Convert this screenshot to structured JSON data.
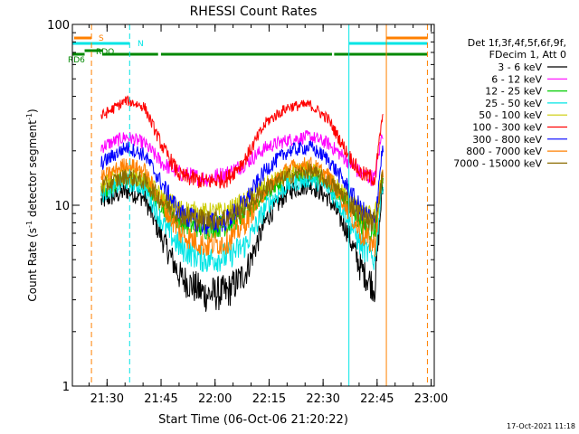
{
  "chart_data": {
    "type": "line",
    "title": "RHESSI Count Rates",
    "xlabel": "Start Time (06-Oct-06 21:20:22)",
    "ylabel_main": "Count Rate (s",
    "ylabel_sup1": "-1",
    "ylabel_mid": " detector segment",
    "ylabel_sup2": "-1",
    "ylabel_end": ")",
    "scale_y": "log",
    "x_unit": "minutes since 21:20:22",
    "xlim": [
      0,
      100.5
    ],
    "ylim": [
      1,
      100
    ],
    "x_ticks": [
      {
        "label": "21:30",
        "x": 9.63
      },
      {
        "label": "21:45",
        "x": 24.63
      },
      {
        "label": "22:00",
        "x": 39.63
      },
      {
        "label": "22:15",
        "x": 54.63
      },
      {
        "label": "22:30",
        "x": 69.63
      },
      {
        "label": "22:45",
        "x": 84.63
      },
      {
        "label": "23:00",
        "x": 99.63
      }
    ],
    "y_ticks": [
      {
        "label": "1",
        "y": 1
      },
      {
        "label": "10",
        "y": 10
      },
      {
        "label": "100",
        "y": 100
      }
    ],
    "legend_header": [
      "Det 1f,3f,4f,5f,6f,9f,",
      "FDecim 1, Att 0"
    ],
    "legend_position": "right",
    "data_start": 8,
    "data_end": 86.3,
    "series": [
      {
        "name": "3 - 6 keV",
        "color": "#000000",
        "x": [
          8,
          15,
          20,
          25,
          30,
          37,
          43,
          48,
          54,
          60,
          66,
          71,
          76,
          80,
          84,
          86
        ],
        "y": [
          10.5,
          12,
          11,
          6.5,
          4,
          3.2,
          3.3,
          4.2,
          8.5,
          12,
          13,
          11,
          7.5,
          4.5,
          3.5,
          12
        ]
      },
      {
        "name": "6 - 12 keV",
        "color": "#ff00ff",
        "x": [
          8,
          15,
          20,
          25,
          30,
          37,
          43,
          48,
          54,
          60,
          66,
          71,
          76,
          80,
          84,
          86
        ],
        "y": [
          21,
          24,
          22,
          17,
          15,
          14,
          15,
          17,
          21,
          23,
          24,
          22,
          18,
          15,
          14,
          25
        ]
      },
      {
        "name": "12 - 25 keV",
        "color": "#00cc00",
        "x": [
          8,
          15,
          20,
          25,
          30,
          37,
          43,
          48,
          54,
          60,
          66,
          71,
          76,
          80,
          84,
          86
        ],
        "y": [
          12,
          14,
          13,
          10,
          8,
          7.5,
          7.8,
          9,
          12,
          14,
          15,
          13,
          10.5,
          8,
          7,
          14
        ]
      },
      {
        "name": "25 - 50 keV",
        "color": "#00e5e5",
        "x": [
          8,
          15,
          20,
          25,
          30,
          37,
          43,
          48,
          54,
          60,
          66,
          71,
          76,
          80,
          84,
          86
        ],
        "y": [
          11.5,
          13.5,
          12.5,
          8,
          5.8,
          5,
          5.2,
          6,
          10,
          13,
          14,
          12.5,
          9,
          6,
          5,
          13
        ]
      },
      {
        "name": "50 - 100 keV",
        "color": "#cccc00",
        "x": [
          8,
          15,
          20,
          25,
          30,
          37,
          43,
          48,
          54,
          60,
          66,
          71,
          76,
          80,
          84,
          86
        ],
        "y": [
          13,
          15,
          14,
          11,
          9.5,
          9,
          9.2,
          10.5,
          13,
          15,
          16,
          14,
          11.5,
          9,
          8.5,
          15
        ]
      },
      {
        "name": "100 - 300 keV",
        "color": "#ff0000",
        "x": [
          8,
          15,
          20,
          25,
          30,
          37,
          43,
          48,
          54,
          60,
          66,
          71,
          76,
          80,
          84,
          86
        ],
        "y": [
          31,
          38,
          35,
          21,
          14.5,
          13.5,
          14,
          18,
          29,
          35,
          36,
          30,
          20,
          15,
          14,
          30
        ]
      },
      {
        "name": "300 - 800 keV",
        "color": "#0000ff",
        "x": [
          8,
          15,
          20,
          25,
          30,
          37,
          43,
          48,
          54,
          60,
          66,
          71,
          76,
          80,
          84,
          86
        ],
        "y": [
          17,
          21,
          19,
          13,
          9,
          7.8,
          8.3,
          10.5,
          16,
          20,
          21,
          18,
          13,
          9.5,
          8,
          20
        ]
      },
      {
        "name": "800 - 7000 keV",
        "color": "#ff8000",
        "x": [
          8,
          15,
          20,
          25,
          30,
          37,
          43,
          48,
          54,
          60,
          66,
          71,
          76,
          80,
          84,
          86
        ],
        "y": [
          14,
          17,
          15.5,
          10,
          7,
          6,
          6.3,
          8,
          12.5,
          16,
          17,
          14.5,
          10,
          7,
          6,
          15
        ]
      },
      {
        "name": "7000 - 15000 keV",
        "color": "#8b6b00",
        "x": [
          8,
          15,
          20,
          25,
          30,
          37,
          43,
          48,
          54,
          60,
          66,
          71,
          76,
          80,
          84,
          86
        ],
        "y": [
          12.5,
          14.5,
          13.5,
          10.5,
          8.8,
          8.3,
          8.5,
          9.8,
          12.5,
          14.5,
          15.5,
          13.5,
          11,
          8.8,
          8,
          14
        ]
      }
    ],
    "vertical_markers": [
      {
        "x": 5.3,
        "color": "#ff8000",
        "style": "dashed"
      },
      {
        "x": 15.9,
        "color": "#00e5e5",
        "style": "dashed"
      },
      {
        "x": 76.8,
        "color": "#00e5e5",
        "style": "solid"
      },
      {
        "x": 87.2,
        "color": "#ff8000",
        "style": "solid"
      },
      {
        "x": 98.6,
        "color": "#ff8000",
        "style": "dashed"
      }
    ],
    "flag_bars": [
      {
        "label": "S",
        "color": "#ff8000",
        "segments": [
          [
            0.5,
            5.3
          ],
          [
            87.2,
            98.6
          ]
        ]
      },
      {
        "label": "N",
        "color": "#00e5e5",
        "segments": [
          [
            0,
            15.9
          ],
          [
            76.8,
            98.6
          ]
        ]
      },
      {
        "label": "RDO",
        "color": "#008800",
        "segments": [
          [
            3.4,
            8.3
          ]
        ]
      },
      {
        "label": "RD6",
        "color": "#008800",
        "segments": [
          [
            0,
            3.4
          ],
          [
            8.3,
            23.8
          ],
          [
            24.6,
            45.6
          ],
          [
            45.6,
            72.1
          ],
          [
            72.7,
            98.6
          ]
        ]
      }
    ]
  },
  "footer": {
    "timestamp": "17-Oct-2021 11:18"
  }
}
